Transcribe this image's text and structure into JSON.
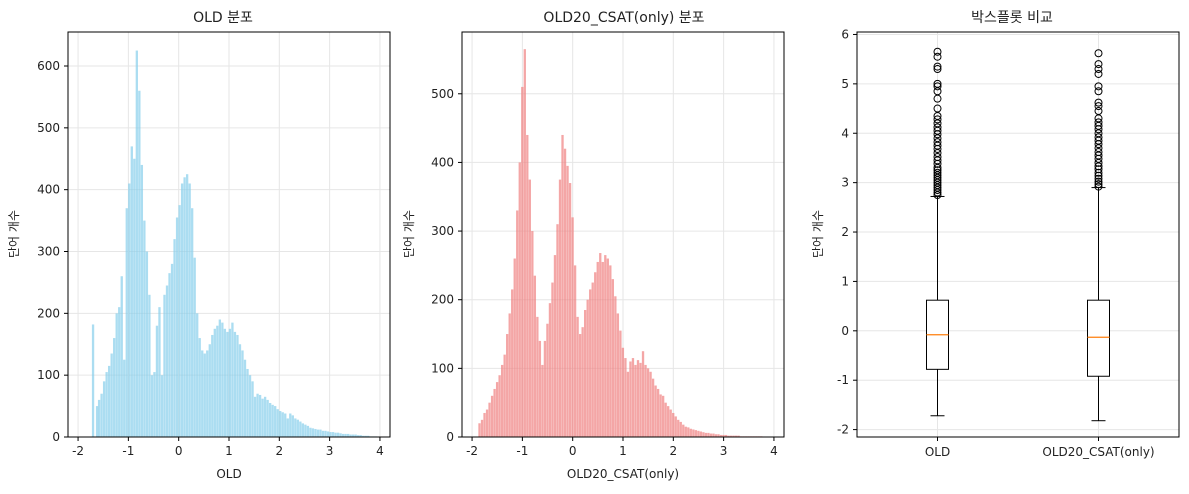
{
  "chart_data": [
    {
      "type": "bar",
      "title": "OLD 분포",
      "xlabel": "OLD",
      "ylabel": "단어 개수",
      "color": "#87ceeb",
      "xlim": [
        -2.2,
        4.2
      ],
      "ylim": [
        0,
        655
      ],
      "xticks": [
        -2,
        -1,
        0,
        1,
        2,
        3,
        4
      ],
      "yticks": [
        0,
        100,
        200,
        300,
        400,
        500,
        600
      ],
      "bin_width": 0.05,
      "bins": [
        [
          -1.7,
          182
        ],
        [
          -1.62,
          50
        ],
        [
          -1.58,
          60
        ],
        [
          -1.53,
          70
        ],
        [
          -1.48,
          90
        ],
        [
          -1.43,
          105
        ],
        [
          -1.38,
          115
        ],
        [
          -1.33,
          135
        ],
        [
          -1.28,
          160
        ],
        [
          -1.23,
          200
        ],
        [
          -1.18,
          210
        ],
        [
          -1.13,
          260
        ],
        [
          -1.08,
          125
        ],
        [
          -1.03,
          370
        ],
        [
          -0.98,
          410
        ],
        [
          -0.93,
          470
        ],
        [
          -0.88,
          450
        ],
        [
          -0.83,
          625
        ],
        [
          -0.78,
          560
        ],
        [
          -0.73,
          440
        ],
        [
          -0.68,
          350
        ],
        [
          -0.63,
          300
        ],
        [
          -0.58,
          230
        ],
        [
          -0.53,
          100
        ],
        [
          -0.48,
          105
        ],
        [
          -0.43,
          180
        ],
        [
          -0.38,
          210
        ],
        [
          -0.33,
          100
        ],
        [
          -0.28,
          230
        ],
        [
          -0.23,
          245
        ],
        [
          -0.18,
          265
        ],
        [
          -0.13,
          280
        ],
        [
          -0.08,
          320
        ],
        [
          -0.03,
          355
        ],
        [
          0.02,
          375
        ],
        [
          0.07,
          410
        ],
        [
          0.12,
          420
        ],
        [
          0.17,
          425
        ],
        [
          0.22,
          410
        ],
        [
          0.27,
          370
        ],
        [
          0.32,
          290
        ],
        [
          0.37,
          200
        ],
        [
          0.42,
          160
        ],
        [
          0.47,
          140
        ],
        [
          0.52,
          135
        ],
        [
          0.57,
          140
        ],
        [
          0.62,
          150
        ],
        [
          0.67,
          165
        ],
        [
          0.72,
          175
        ],
        [
          0.77,
          180
        ],
        [
          0.82,
          190
        ],
        [
          0.87,
          185
        ],
        [
          0.92,
          175
        ],
        [
          0.97,
          170
        ],
        [
          1.02,
          175
        ],
        [
          1.07,
          185
        ],
        [
          1.12,
          170
        ],
        [
          1.17,
          165
        ],
        [
          1.22,
          150
        ],
        [
          1.27,
          140
        ],
        [
          1.32,
          125
        ],
        [
          1.37,
          110
        ],
        [
          1.42,
          100
        ],
        [
          1.47,
          90
        ],
        [
          1.52,
          65
        ],
        [
          1.57,
          70
        ],
        [
          1.62,
          68
        ],
        [
          1.67,
          62
        ],
        [
          1.72,
          65
        ],
        [
          1.77,
          60
        ],
        [
          1.82,
          55
        ],
        [
          1.87,
          52
        ],
        [
          1.92,
          50
        ],
        [
          1.97,
          45
        ],
        [
          2.02,
          42
        ],
        [
          2.07,
          40
        ],
        [
          2.12,
          38
        ],
        [
          2.17,
          30
        ],
        [
          2.22,
          38
        ],
        [
          2.27,
          35
        ],
        [
          2.32,
          30
        ],
        [
          2.37,
          28
        ],
        [
          2.42,
          25
        ],
        [
          2.47,
          22
        ],
        [
          2.52,
          20
        ],
        [
          2.57,
          18
        ],
        [
          2.62,
          15
        ],
        [
          2.67,
          14
        ],
        [
          2.72,
          13
        ],
        [
          2.77,
          12
        ],
        [
          2.82,
          12
        ],
        [
          2.87,
          10
        ],
        [
          2.92,
          10
        ],
        [
          2.97,
          9
        ],
        [
          3.02,
          8
        ],
        [
          3.07,
          8
        ],
        [
          3.12,
          7
        ],
        [
          3.17,
          7
        ],
        [
          3.22,
          6
        ],
        [
          3.27,
          5
        ],
        [
          3.32,
          5
        ],
        [
          3.37,
          5
        ],
        [
          3.42,
          4
        ],
        [
          3.47,
          4
        ],
        [
          3.52,
          4
        ],
        [
          3.57,
          3
        ],
        [
          3.62,
          3
        ],
        [
          3.67,
          2
        ],
        [
          3.72,
          2
        ],
        [
          3.77,
          2
        ],
        [
          3.82,
          1
        ],
        [
          3.87,
          1
        ],
        [
          3.92,
          1
        ]
      ]
    },
    {
      "type": "bar",
      "title": "OLD20_CSAT(only) 분포",
      "xlabel": "OLD20_CSAT(only)",
      "ylabel": "단어 개수",
      "color": "#f08080",
      "xlim": [
        -2.2,
        4.2
      ],
      "ylim": [
        0,
        590
      ],
      "xticks": [
        -2,
        -1,
        0,
        1,
        2,
        3,
        4
      ],
      "yticks": [
        0,
        100,
        200,
        300,
        400,
        500
      ],
      "bin_width": 0.05,
      "bins": [
        [
          -1.85,
          20
        ],
        [
          -1.8,
          25
        ],
        [
          -1.75,
          35
        ],
        [
          -1.7,
          40
        ],
        [
          -1.65,
          50
        ],
        [
          -1.6,
          60
        ],
        [
          -1.55,
          70
        ],
        [
          -1.5,
          80
        ],
        [
          -1.45,
          90
        ],
        [
          -1.4,
          105
        ],
        [
          -1.35,
          120
        ],
        [
          -1.3,
          150
        ],
        [
          -1.25,
          180
        ],
        [
          -1.2,
          215
        ],
        [
          -1.15,
          260
        ],
        [
          -1.1,
          330
        ],
        [
          -1.05,
          400
        ],
        [
          -1.0,
          510
        ],
        [
          -0.95,
          565
        ],
        [
          -0.9,
          440
        ],
        [
          -0.85,
          375
        ],
        [
          -0.8,
          300
        ],
        [
          -0.75,
          235
        ],
        [
          -0.7,
          175
        ],
        [
          -0.65,
          140
        ],
        [
          -0.6,
          105
        ],
        [
          -0.55,
          140
        ],
        [
          -0.5,
          165
        ],
        [
          -0.45,
          195
        ],
        [
          -0.4,
          225
        ],
        [
          -0.35,
          265
        ],
        [
          -0.3,
          310
        ],
        [
          -0.25,
          375
        ],
        [
          -0.2,
          440
        ],
        [
          -0.15,
          420
        ],
        [
          -0.1,
          395
        ],
        [
          -0.05,
          370
        ],
        [
          0.0,
          320
        ],
        [
          0.05,
          250
        ],
        [
          0.1,
          175
        ],
        [
          0.15,
          150
        ],
        [
          0.2,
          160
        ],
        [
          0.25,
          185
        ],
        [
          0.3,
          200
        ],
        [
          0.35,
          215
        ],
        [
          0.4,
          225
        ],
        [
          0.45,
          240
        ],
        [
          0.5,
          255
        ],
        [
          0.55,
          268
        ],
        [
          0.6,
          255
        ],
        [
          0.65,
          265
        ],
        [
          0.7,
          260
        ],
        [
          0.75,
          250
        ],
        [
          0.8,
          230
        ],
        [
          0.85,
          205
        ],
        [
          0.9,
          180
        ],
        [
          0.95,
          155
        ],
        [
          1.0,
          130
        ],
        [
          1.05,
          115
        ],
        [
          1.1,
          95
        ],
        [
          1.15,
          110
        ],
        [
          1.2,
          115
        ],
        [
          1.25,
          105
        ],
        [
          1.3,
          112
        ],
        [
          1.35,
          108
        ],
        [
          1.4,
          125
        ],
        [
          1.45,
          105
        ],
        [
          1.5,
          100
        ],
        [
          1.55,
          95
        ],
        [
          1.6,
          85
        ],
        [
          1.65,
          75
        ],
        [
          1.7,
          70
        ],
        [
          1.75,
          62
        ],
        [
          1.8,
          60
        ],
        [
          1.85,
          50
        ],
        [
          1.9,
          45
        ],
        [
          1.95,
          40
        ],
        [
          2.0,
          35
        ],
        [
          2.05,
          30
        ],
        [
          2.1,
          25
        ],
        [
          2.15,
          22
        ],
        [
          2.2,
          18
        ],
        [
          2.25,
          15
        ],
        [
          2.3,
          14
        ],
        [
          2.35,
          12
        ],
        [
          2.4,
          11
        ],
        [
          2.45,
          10
        ],
        [
          2.5,
          9
        ],
        [
          2.55,
          8
        ],
        [
          2.6,
          7
        ],
        [
          2.65,
          6
        ],
        [
          2.7,
          6
        ],
        [
          2.75,
          5
        ],
        [
          2.8,
          5
        ],
        [
          2.85,
          4
        ],
        [
          2.9,
          4
        ],
        [
          2.95,
          3
        ],
        [
          3.0,
          3
        ],
        [
          3.05,
          3
        ],
        [
          3.1,
          2
        ],
        [
          3.15,
          2
        ],
        [
          3.2,
          2
        ],
        [
          3.25,
          2
        ],
        [
          3.3,
          2
        ],
        [
          3.35,
          1
        ],
        [
          3.4,
          1
        ],
        [
          3.45,
          1
        ],
        [
          3.5,
          1
        ],
        [
          3.55,
          1
        ],
        [
          3.6,
          1
        ],
        [
          3.65,
          1
        ],
        [
          3.7,
          1
        ],
        [
          3.75,
          1
        ]
      ]
    },
    {
      "type": "boxplot",
      "title": "박스플롯 비교",
      "xlabel": "",
      "ylabel": "단어 개수",
      "ylim": [
        -2.15,
        6.05
      ],
      "yticks": [
        -2,
        -1,
        0,
        1,
        2,
        3,
        4,
        5,
        6
      ],
      "median_color": "#ff7f0e",
      "boxes": [
        {
          "label": "OLD",
          "whisker_low": -1.72,
          "q1": -0.78,
          "median": -0.08,
          "q3": 0.62,
          "whisker_high": 2.72,
          "outliers": [
            2.75,
            2.8,
            2.85,
            2.9,
            2.95,
            3.0,
            3.05,
            3.1,
            3.15,
            3.2,
            3.25,
            3.3,
            3.38,
            3.45,
            3.52,
            3.6,
            3.68,
            3.75,
            3.82,
            3.9,
            3.98,
            4.05,
            4.12,
            4.2,
            4.28,
            4.35,
            4.5,
            4.7,
            4.85,
            4.95,
            5.0,
            5.3,
            5.35,
            5.55,
            5.65
          ]
        },
        {
          "label": "OLD20_CSAT(only)",
          "whisker_low": -1.82,
          "q1": -0.92,
          "median": -0.13,
          "q3": 0.62,
          "whisker_high": 2.9,
          "outliers": [
            2.92,
            2.97,
            3.02,
            3.08,
            3.14,
            3.2,
            3.27,
            3.33,
            3.4,
            3.48,
            3.55,
            3.62,
            3.7,
            3.78,
            3.85,
            3.92,
            4.0,
            4.08,
            4.15,
            4.22,
            4.3,
            4.45,
            4.55,
            4.62,
            4.85,
            4.95,
            5.2,
            5.3,
            5.4,
            5.62
          ]
        }
      ]
    }
  ]
}
